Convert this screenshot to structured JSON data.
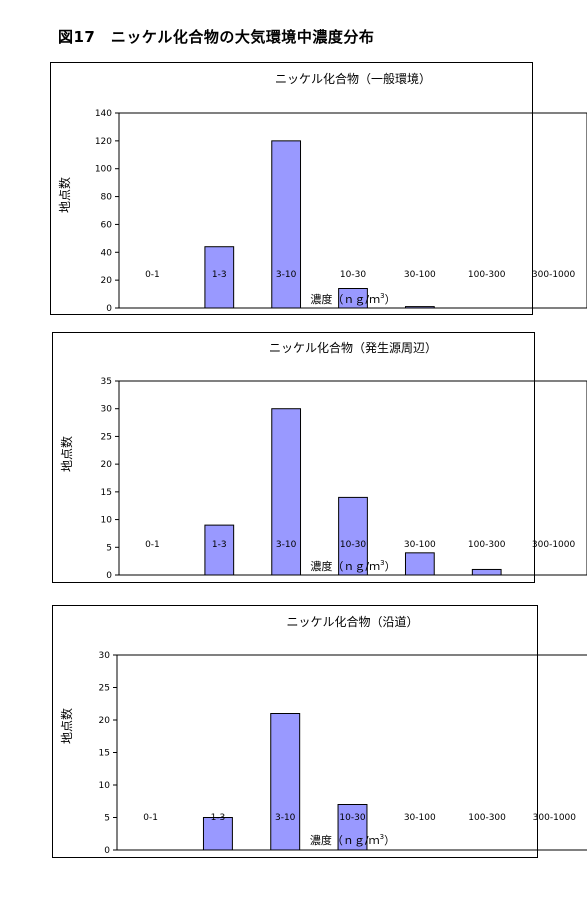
{
  "figure_title": "図17　ニッケル化合物の大気環境中濃度分布",
  "colors": {
    "bar_fill": "#9999ff",
    "bar_stroke": "#000000",
    "frame": "#000000"
  },
  "chart_data": [
    {
      "type": "bar",
      "title": "ニッケル化合物（一般環境）",
      "xlabel": "濃度（ｎｇ/ｍ",
      "xlabel_sup": "3",
      "xlabel_close": "）",
      "ylabel": "地点数",
      "categories": [
        "0-1",
        "1-3",
        "3-10",
        "10-30",
        "30-100",
        "100-300",
        "300-1000"
      ],
      "values": [
        0,
        44,
        120,
        14,
        1,
        0,
        0
      ],
      "ylim": [
        0,
        140
      ],
      "yticks": [
        0,
        20,
        40,
        60,
        80,
        100,
        120,
        140
      ],
      "grid": false,
      "legend": "none"
    },
    {
      "type": "bar",
      "title": "ニッケル化合物（発生源周辺）",
      "xlabel": "濃度（ｎｇ/ｍ",
      "xlabel_sup": "3",
      "xlabel_close": "）",
      "ylabel": "地点数",
      "categories": [
        "0-1",
        "1-3",
        "3-10",
        "10-30",
        "30-100",
        "100-300",
        "300-1000"
      ],
      "values": [
        0,
        9,
        30,
        14,
        4,
        1,
        0
      ],
      "ylim": [
        0,
        35
      ],
      "yticks": [
        0,
        5,
        10,
        15,
        20,
        25,
        30,
        35
      ],
      "grid": false,
      "legend": "none"
    },
    {
      "type": "bar",
      "title": "ニッケル化合物（沿道）",
      "xlabel": "濃度（ｎｇ/ｍ",
      "xlabel_sup": "3",
      "xlabel_close": "）",
      "ylabel": "地点数",
      "categories": [
        "0-1",
        "1-3",
        "3-10",
        "10-30",
        "30-100",
        "100-300",
        "300-1000"
      ],
      "values": [
        0,
        5,
        21,
        7,
        0,
        0,
        0
      ],
      "ylim": [
        0,
        30
      ],
      "yticks": [
        0,
        5,
        10,
        15,
        20,
        25,
        30
      ],
      "grid": false,
      "legend": "none"
    }
  ]
}
